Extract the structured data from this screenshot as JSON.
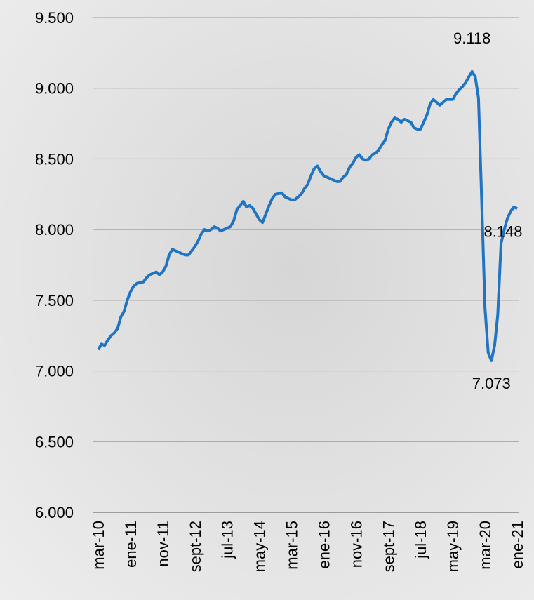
{
  "chart_data": {
    "type": "line",
    "categories": [
      "mar-10",
      null,
      null,
      null,
      null,
      null,
      null,
      null,
      null,
      null,
      "ene-11",
      null,
      null,
      null,
      null,
      null,
      null,
      null,
      null,
      null,
      "nov-11",
      null,
      null,
      null,
      null,
      null,
      null,
      null,
      null,
      null,
      "sept-12",
      null,
      null,
      null,
      null,
      null,
      null,
      null,
      null,
      null,
      "jul-13",
      null,
      null,
      null,
      null,
      null,
      null,
      null,
      null,
      null,
      "may-14",
      null,
      null,
      null,
      null,
      null,
      null,
      null,
      null,
      null,
      "mar-15",
      null,
      null,
      null,
      null,
      null,
      null,
      null,
      null,
      null,
      "ene-16",
      null,
      null,
      null,
      null,
      null,
      null,
      null,
      null,
      null,
      "nov-16",
      null,
      null,
      null,
      null,
      null,
      null,
      null,
      null,
      null,
      "sept-17",
      null,
      null,
      null,
      null,
      null,
      null,
      null,
      null,
      null,
      "jul-18",
      null,
      null,
      null,
      null,
      null,
      null,
      null,
      null,
      null,
      "may-19",
      null,
      null,
      null,
      null,
      null,
      null,
      null,
      null,
      null,
      "mar-20",
      null,
      null,
      null,
      null,
      null,
      null,
      null,
      null,
      null,
      "ene-21"
    ],
    "values": [
      7150,
      7190,
      7180,
      7220,
      7250,
      7270,
      7300,
      7380,
      7420,
      7500,
      7560,
      7600,
      7620,
      7625,
      7630,
      7660,
      7680,
      7690,
      7700,
      7680,
      7700,
      7740,
      7820,
      7860,
      7850,
      7840,
      7830,
      7820,
      7820,
      7850,
      7880,
      7920,
      7970,
      8000,
      7990,
      8000,
      8020,
      8010,
      7990,
      8000,
      8010,
      8020,
      8060,
      8140,
      8170,
      8200,
      8160,
      8170,
      8150,
      8110,
      8070,
      8050,
      8110,
      8170,
      8220,
      8250,
      8255,
      8260,
      8230,
      8220,
      8210,
      8210,
      8230,
      8250,
      8290,
      8320,
      8380,
      8430,
      8450,
      8410,
      8380,
      8370,
      8360,
      8350,
      8340,
      8340,
      8370,
      8390,
      8440,
      8470,
      8510,
      8530,
      8500,
      8490,
      8500,
      8530,
      8540,
      8560,
      8600,
      8630,
      8710,
      8760,
      8790,
      8780,
      8760,
      8780,
      8770,
      8760,
      8720,
      8710,
      8710,
      8760,
      8810,
      8890,
      8920,
      8900,
      8880,
      8900,
      8920,
      8920,
      8920,
      8960,
      8990,
      9010,
      9040,
      9080,
      9118,
      9080,
      8930,
      8200,
      7450,
      7130,
      7073,
      7180,
      7400,
      7900,
      8000,
      8080,
      8130,
      8160,
      8148
    ],
    "value_labels": [
      null,
      null,
      null,
      null,
      null,
      null,
      null,
      null,
      null,
      null,
      null,
      null,
      null,
      null,
      null,
      null,
      null,
      null,
      null,
      null,
      null,
      null,
      null,
      null,
      null,
      null,
      null,
      null,
      null,
      null,
      null,
      null,
      null,
      null,
      null,
      null,
      null,
      null,
      null,
      null,
      null,
      null,
      null,
      null,
      null,
      null,
      null,
      null,
      null,
      null,
      null,
      null,
      null,
      null,
      null,
      null,
      null,
      null,
      null,
      null,
      null,
      null,
      null,
      null,
      null,
      null,
      null,
      null,
      null,
      null,
      null,
      null,
      null,
      null,
      null,
      null,
      null,
      null,
      null,
      null,
      null,
      null,
      null,
      null,
      null,
      null,
      null,
      null,
      null,
      null,
      null,
      null,
      null,
      null,
      null,
      null,
      null,
      null,
      null,
      null,
      null,
      null,
      null,
      null,
      null,
      null,
      null,
      null,
      null,
      null,
      null,
      null,
      null,
      null,
      null,
      null,
      "9.118",
      null,
      null,
      null,
      null,
      null,
      "7.073",
      null,
      null,
      null,
      null,
      null,
      null,
      null,
      "8.148"
    ],
    "color": "#1f74c4",
    "ylim": [
      6000,
      9500
    ],
    "yticks": [
      {
        "value": 6000,
        "label": "6.000"
      },
      {
        "value": 6500,
        "label": "6.500"
      },
      {
        "value": 7000,
        "label": "7.000"
      },
      {
        "value": 7500,
        "label": "7.500"
      },
      {
        "value": 8000,
        "label": "8.000"
      },
      {
        "value": 8500,
        "label": "8.500"
      },
      {
        "value": 9000,
        "label": "9.000"
      },
      {
        "value": 9500,
        "label": "9.500"
      }
    ],
    "grid": true
  }
}
